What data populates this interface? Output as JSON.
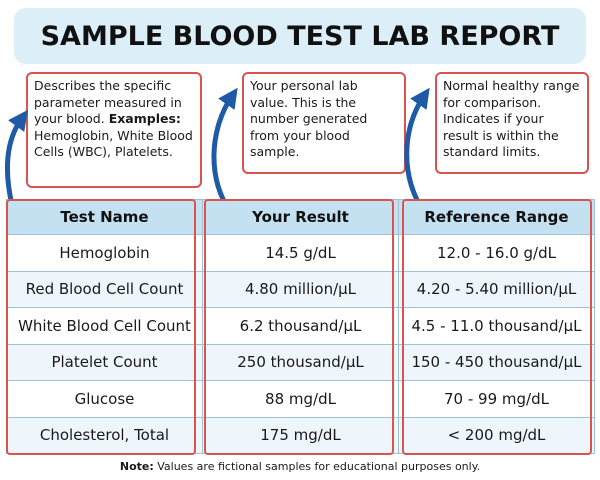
{
  "title": "SAMPLE BLOOD TEST LAB REPORT",
  "callouts": {
    "test_name": {
      "text": "Describes the specific parameter measured in your blood.",
      "examples_label": "Examples:",
      "examples_text": " Hemoglobin, White Blood Cells (WBC), Platelets."
    },
    "your_result": {
      "text": "Your personal lab value. This is the number generated from your blood sample."
    },
    "reference_range": {
      "text": "Normal healthy range for comparison. Indicates if your result is within the standard limits."
    }
  },
  "table": {
    "headers": [
      "Test Name",
      "Your Result",
      "Reference Range"
    ],
    "rows": [
      [
        "Hemoglobin",
        "14.5 g/dL",
        "12.0 - 16.0 g/dL"
      ],
      [
        "Red Blood Cell Count",
        "4.80 million/µL",
        "4.20 - 5.40 million/µL"
      ],
      [
        "White Blood Cell Count",
        "6.2 thousand/µL",
        "4.5 - 11.0 thousand/µL"
      ],
      [
        "Platelet Count",
        "250 thousand/µL",
        "150 - 450 thousand/µL"
      ],
      [
        "Glucose",
        "88 mg/dL",
        "70 - 99 mg/dL"
      ],
      [
        "Cholesterol, Total",
        "175 mg/dL",
        "< 200 mg/dL"
      ]
    ]
  },
  "note": {
    "label": "Note:",
    "text": " Values are fictional samples for educational purposes only."
  },
  "colors": {
    "title_background": "#dceef7",
    "callout_border": "#d9534f",
    "arrow": "#1f5aa6",
    "header_background": "#c4e1f1"
  }
}
